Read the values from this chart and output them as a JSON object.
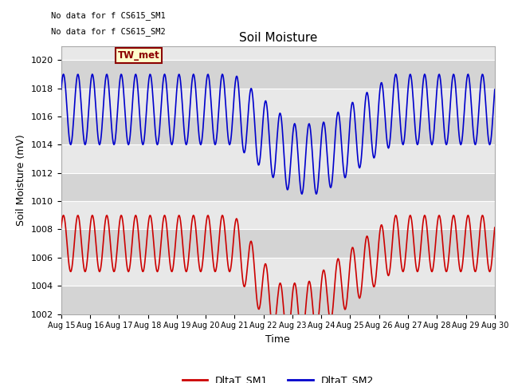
{
  "title": "Soil Moisture",
  "xlabel": "Time",
  "ylabel": "Soil Moisture (mV)",
  "ylim": [
    1002,
    1021
  ],
  "yticks": [
    1002,
    1004,
    1006,
    1008,
    1010,
    1012,
    1014,
    1016,
    1018,
    1020
  ],
  "annotation_lines": [
    "No data for f CS615_SM1",
    "No data for f CS615_SM2"
  ],
  "tw_label": "TW_met",
  "background_color": "#ffffff",
  "plot_bg_color": "#e8e8e8",
  "band_color": "#d4d4d4",
  "sm1_color": "#cc0000",
  "sm2_color": "#0000cc",
  "legend_sm1": "DltaT_SM1",
  "legend_sm2": "DltaT_SM2",
  "x_tick_labels": [
    "Aug 15",
    "Aug 16",
    "Aug 17",
    "Aug 18",
    "Aug 19",
    "Aug 20",
    "Aug 21",
    "Aug 22",
    "Aug 23",
    "Aug 24",
    "Aug 25",
    "Aug 26",
    "Aug 27",
    "Aug 28",
    "Aug 29",
    "Aug 30"
  ],
  "num_days": 16,
  "sm1_base": 1007.0,
  "sm1_amplitude": 2.0,
  "sm2_base": 1016.5,
  "sm2_amplitude": 2.5,
  "period_hours": 12,
  "hours_per_day": 24
}
